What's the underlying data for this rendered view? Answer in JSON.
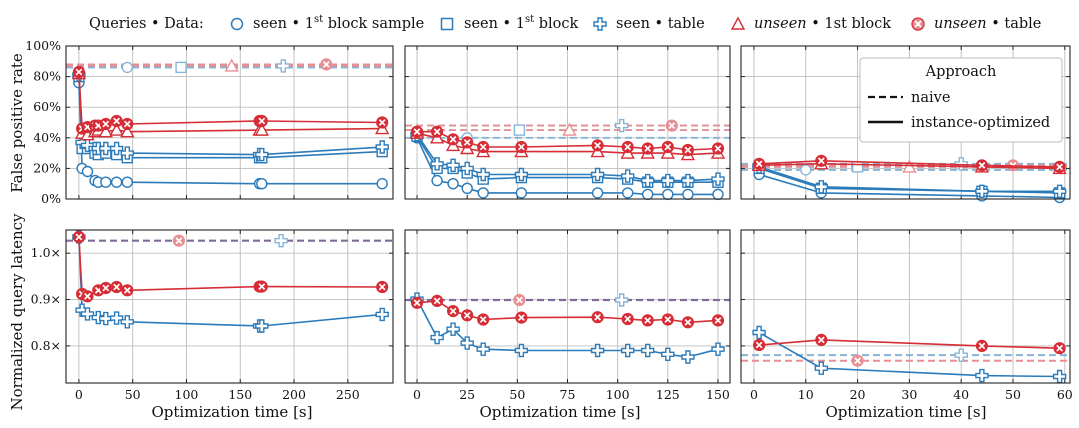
{
  "legend": {
    "title": "Queries • Data:",
    "entries": [
      {
        "key": "sb",
        "pre": "seen • 1",
        "sup": "st",
        "post": " block sample",
        "italic": false
      },
      {
        "key": "b",
        "pre": "seen • 1",
        "sup": "st",
        "post": " block",
        "italic": false
      },
      {
        "key": "t",
        "pre": "seen • table",
        "sup": "",
        "post": "",
        "italic": false
      },
      {
        "key": "ub",
        "pre": "unseen",
        "sup": "",
        "post": " • 1st block",
        "italic": true
      },
      {
        "key": "ut",
        "pre": "unseen",
        "sup": "",
        "post": " • table",
        "italic": true
      }
    ]
  },
  "approach_legend": {
    "title": "Approach",
    "naive": "naive",
    "instance": "instance-optimized"
  },
  "colors": {
    "blue": "#2b7bba",
    "red": "#d62d36",
    "blue_light": "#86b4d8",
    "red_light": "#e58f93",
    "naive_mix": "#7e6d9c"
  },
  "chart_data": [
    {
      "type": "line",
      "row": "fpr",
      "col": 0,
      "ylabel": "False positive rate",
      "xlim": [
        -12,
        292
      ],
      "ylim": [
        0,
        100
      ],
      "yticks": [
        "0%",
        "20%",
        "40%",
        "60%",
        "80%",
        "100%"
      ],
      "xticks": [],
      "series": [
        {
          "key": "sb",
          "x": [
            0,
            3,
            8,
            15,
            18,
            25,
            35,
            45,
            168,
            170,
            282
          ],
          "y": [
            76,
            20,
            18,
            12,
            11,
            11,
            11,
            11,
            10,
            10,
            10
          ]
        },
        {
          "key": "b",
          "x": [
            0,
            3,
            8,
            15,
            18,
            25,
            35,
            45,
            168,
            170,
            282
          ],
          "y": [
            80,
            33,
            33,
            30,
            29,
            30,
            29,
            27,
            27,
            27,
            31
          ]
        },
        {
          "key": "t",
          "x": [
            0,
            3,
            8,
            15,
            18,
            25,
            35,
            45,
            168,
            170,
            282
          ],
          "y": [
            81,
            37,
            35,
            33,
            33,
            33,
            33,
            30,
            29,
            29,
            34
          ]
        },
        {
          "key": "ub",
          "x": [
            0,
            3,
            8,
            15,
            18,
            25,
            35,
            45,
            168,
            170,
            282
          ],
          "y": [
            82,
            43,
            42,
            44,
            45,
            44,
            45,
            44,
            45,
            45,
            46
          ]
        },
        {
          "key": "ut",
          "x": [
            0,
            3,
            8,
            15,
            18,
            25,
            35,
            45,
            168,
            170,
            282
          ],
          "y": [
            83,
            46,
            47,
            48,
            48,
            49,
            51,
            49,
            51,
            51,
            50
          ]
        }
      ],
      "naive": [
        {
          "key": "sb",
          "x": 45,
          "y": 86
        },
        {
          "key": "b",
          "x": 95,
          "y": 86
        },
        {
          "key": "t",
          "x": 190,
          "y": 87
        },
        {
          "key": "ub",
          "x": 142,
          "y": 87
        },
        {
          "key": "ut",
          "x": 230,
          "y": 88
        }
      ]
    },
    {
      "type": "line",
      "row": "fpr",
      "col": 1,
      "ylabel": "",
      "xlim": [
        -6,
        156
      ],
      "ylim": [
        0,
        100
      ],
      "yticks": [],
      "xticks": [],
      "series": [
        {
          "key": "sb",
          "x": [
            0,
            10,
            18,
            25,
            33,
            52,
            90,
            105,
            115,
            125,
            135,
            150
          ],
          "y": [
            40,
            12,
            10,
            7,
            4,
            4,
            4,
            4,
            3,
            3,
            3,
            3
          ]
        },
        {
          "key": "b",
          "x": [
            0,
            10,
            18,
            25,
            33,
            52,
            90,
            105,
            115,
            125,
            135,
            150
          ],
          "y": [
            41,
            20,
            20,
            17,
            13,
            14,
            14,
            13,
            11,
            11,
            11,
            11
          ]
        },
        {
          "key": "t",
          "x": [
            0,
            10,
            18,
            25,
            33,
            52,
            90,
            105,
            115,
            125,
            135,
            150
          ],
          "y": [
            42,
            23,
            22,
            20,
            16,
            16,
            16,
            15,
            12,
            12,
            12,
            13
          ]
        },
        {
          "key": "ub",
          "x": [
            0,
            10,
            18,
            25,
            33,
            52,
            90,
            105,
            115,
            125,
            135,
            150
          ],
          "y": [
            43,
            40,
            35,
            33,
            31,
            31,
            31,
            30,
            30,
            30,
            29,
            30
          ]
        },
        {
          "key": "ut",
          "x": [
            0,
            10,
            18,
            25,
            33,
            52,
            90,
            105,
            115,
            125,
            135,
            150
          ],
          "y": [
            44,
            44,
            39,
            37,
            34,
            34,
            35,
            34,
            33,
            34,
            32,
            33
          ]
        }
      ],
      "naive": [
        {
          "key": "sb",
          "x": 25,
          "y": 40
        },
        {
          "key": "b",
          "x": 51,
          "y": 45
        },
        {
          "key": "t",
          "x": 102,
          "y": 48
        },
        {
          "key": "ub",
          "x": 76,
          "y": 45
        },
        {
          "key": "ut",
          "x": 127,
          "y": 48
        }
      ]
    },
    {
      "type": "line",
      "row": "fpr",
      "col": 2,
      "ylabel": "",
      "xlim": [
        -2.5,
        61
      ],
      "ylim": [
        0,
        100
      ],
      "yticks": [],
      "xticks": [],
      "series": [
        {
          "key": "sb",
          "x": [
            1,
            13,
            44,
            59
          ],
          "y": [
            16,
            4,
            2,
            1
          ]
        },
        {
          "key": "b",
          "x": [
            1,
            13,
            44,
            59
          ],
          "y": [
            20,
            7,
            5,
            4
          ]
        },
        {
          "key": "t",
          "x": [
            1,
            13,
            44,
            59
          ],
          "y": [
            21,
            8,
            5,
            5
          ]
        },
        {
          "key": "ub",
          "x": [
            1,
            13,
            44,
            59
          ],
          "y": [
            22,
            23,
            21,
            20
          ]
        },
        {
          "key": "ut",
          "x": [
            1,
            13,
            44,
            59
          ],
          "y": [
            23,
            25,
            22,
            21
          ]
        }
      ],
      "naive": [
        {
          "key": "sb",
          "x": 10,
          "y": 19
        },
        {
          "key": "b",
          "x": 20,
          "y": 21
        },
        {
          "key": "t",
          "x": 40,
          "y": 23
        },
        {
          "key": "ub",
          "x": 30,
          "y": 21
        },
        {
          "key": "ut",
          "x": 50,
          "y": 22
        }
      ]
    },
    {
      "type": "line",
      "row": "lat",
      "col": 0,
      "ylabel": "Normalized query latency",
      "xlabel": "Optimization time [s]",
      "xlim": [
        -12,
        292
      ],
      "ylim": [
        0.72,
        1.05
      ],
      "yticks": [
        "0.8×",
        "0.9×",
        "1.0×"
      ],
      "ytick_values": [
        0.8,
        0.9,
        1.0
      ],
      "xticks": [
        "0",
        "50",
        "100",
        "150",
        "200",
        "250"
      ],
      "xtick_values": [
        0,
        50,
        100,
        150,
        200,
        250
      ],
      "series": [
        {
          "key": "t",
          "x": [
            0,
            3,
            8,
            18,
            25,
            35,
            45,
            168,
            170,
            282
          ],
          "y": [
            1.035,
            0.877,
            0.869,
            0.861,
            0.859,
            0.86,
            0.852,
            0.843,
            0.843,
            0.868
          ]
        },
        {
          "key": "ut",
          "x": [
            0,
            3,
            8,
            18,
            25,
            35,
            45,
            168,
            170,
            282
          ],
          "y": [
            1.035,
            0.912,
            0.907,
            0.92,
            0.925,
            0.927,
            0.92,
            0.928,
            0.928,
            0.927
          ]
        }
      ],
      "naive_line": 1.027,
      "naive": [
        {
          "key": "ut",
          "x": 93,
          "y": 1.027
        },
        {
          "key": "t",
          "x": 188,
          "y": 1.027
        }
      ]
    },
    {
      "type": "line",
      "row": "lat",
      "col": 1,
      "ylabel": "",
      "xlabel": "Optimization time [s]",
      "xlim": [
        -6,
        156
      ],
      "ylim": [
        0.72,
        1.05
      ],
      "yticks": [],
      "xticks": [
        "0",
        "25",
        "50",
        "75",
        "100",
        "125",
        "150"
      ],
      "xtick_values": [
        0,
        25,
        50,
        75,
        100,
        125,
        150
      ],
      "series": [
        {
          "key": "t",
          "x": [
            0,
            10,
            18,
            25,
            33,
            52,
            90,
            105,
            115,
            125,
            135,
            150
          ],
          "y": [
            0.901,
            0.818,
            0.836,
            0.806,
            0.793,
            0.79,
            0.79,
            0.79,
            0.79,
            0.782,
            0.776,
            0.793
          ]
        },
        {
          "key": "ut",
          "x": [
            0,
            10,
            18,
            25,
            33,
            52,
            90,
            105,
            115,
            125,
            135,
            150
          ],
          "y": [
            0.893,
            0.897,
            0.875,
            0.866,
            0.857,
            0.861,
            0.862,
            0.858,
            0.855,
            0.857,
            0.851,
            0.855
          ]
        }
      ],
      "naive_line": 0.899,
      "naive": [
        {
          "key": "ut",
          "x": 51,
          "y": 0.899
        },
        {
          "key": "t",
          "x": 102,
          "y": 0.899
        }
      ]
    },
    {
      "type": "line",
      "row": "lat",
      "col": 2,
      "ylabel": "",
      "xlabel": "Optimization time [s]",
      "xlim": [
        -2.5,
        61
      ],
      "ylim": [
        0.72,
        1.05
      ],
      "yticks": [],
      "xticks": [
        "0",
        "10",
        "20",
        "30",
        "40",
        "50",
        "60"
      ],
      "xtick_values": [
        0,
        10,
        20,
        30,
        40,
        50,
        60
      ],
      "series": [
        {
          "key": "t",
          "x": [
            1,
            13,
            44,
            59
          ],
          "y": [
            0.829,
            0.752,
            0.736,
            0.734
          ]
        },
        {
          "key": "ut",
          "x": [
            1,
            13,
            44,
            59
          ],
          "y": [
            0.802,
            0.813,
            0.8,
            0.795
          ]
        }
      ],
      "naive_lines": [
        {
          "key": "t",
          "y": 0.78
        },
        {
          "key": "ut",
          "y": 0.768
        }
      ],
      "naive": [
        {
          "key": "ut",
          "x": 20,
          "y": 0.768
        },
        {
          "key": "t",
          "x": 40,
          "y": 0.78
        }
      ]
    }
  ]
}
